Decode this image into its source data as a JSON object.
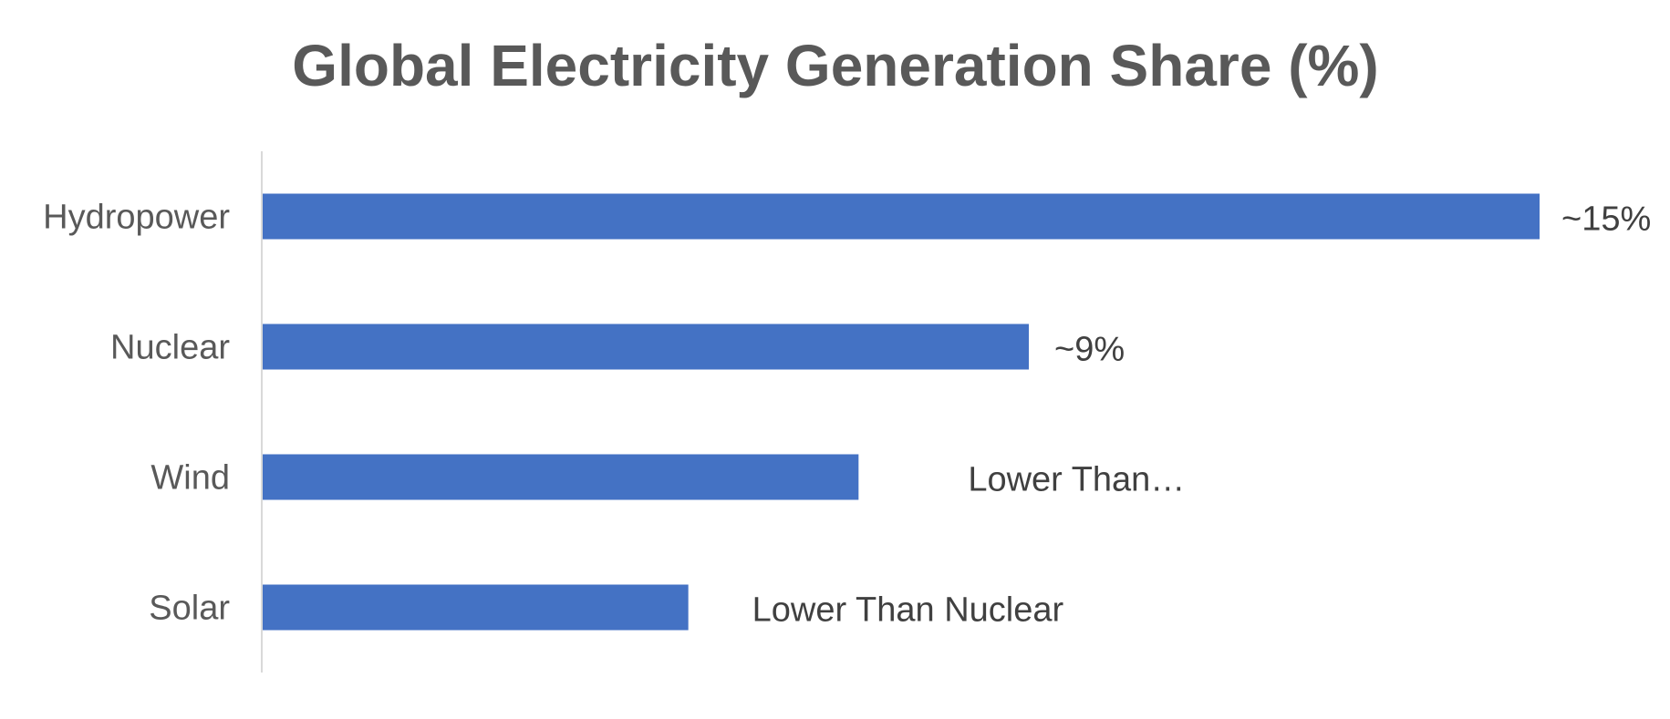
{
  "chart_data": {
    "type": "bar",
    "orientation": "horizontal",
    "title": "Global Electricity Generation Share (%)",
    "xlabel": "",
    "ylabel": "",
    "xlim": [
      0,
      15
    ],
    "grid": false,
    "legend": "none",
    "categories": [
      "Hydropower",
      "Nuclear",
      "Wind",
      "Solar"
    ],
    "values": [
      15,
      9,
      7,
      5
    ],
    "data_labels": [
      "~15%",
      "~9%",
      "Lower Than…",
      "Lower Than Nuclear"
    ],
    "colors": {
      "bar": "#4472C4",
      "axis_line": "#D9D9D9",
      "title": "#595959",
      "category_text": "#595959",
      "label_text": "#404040"
    }
  }
}
